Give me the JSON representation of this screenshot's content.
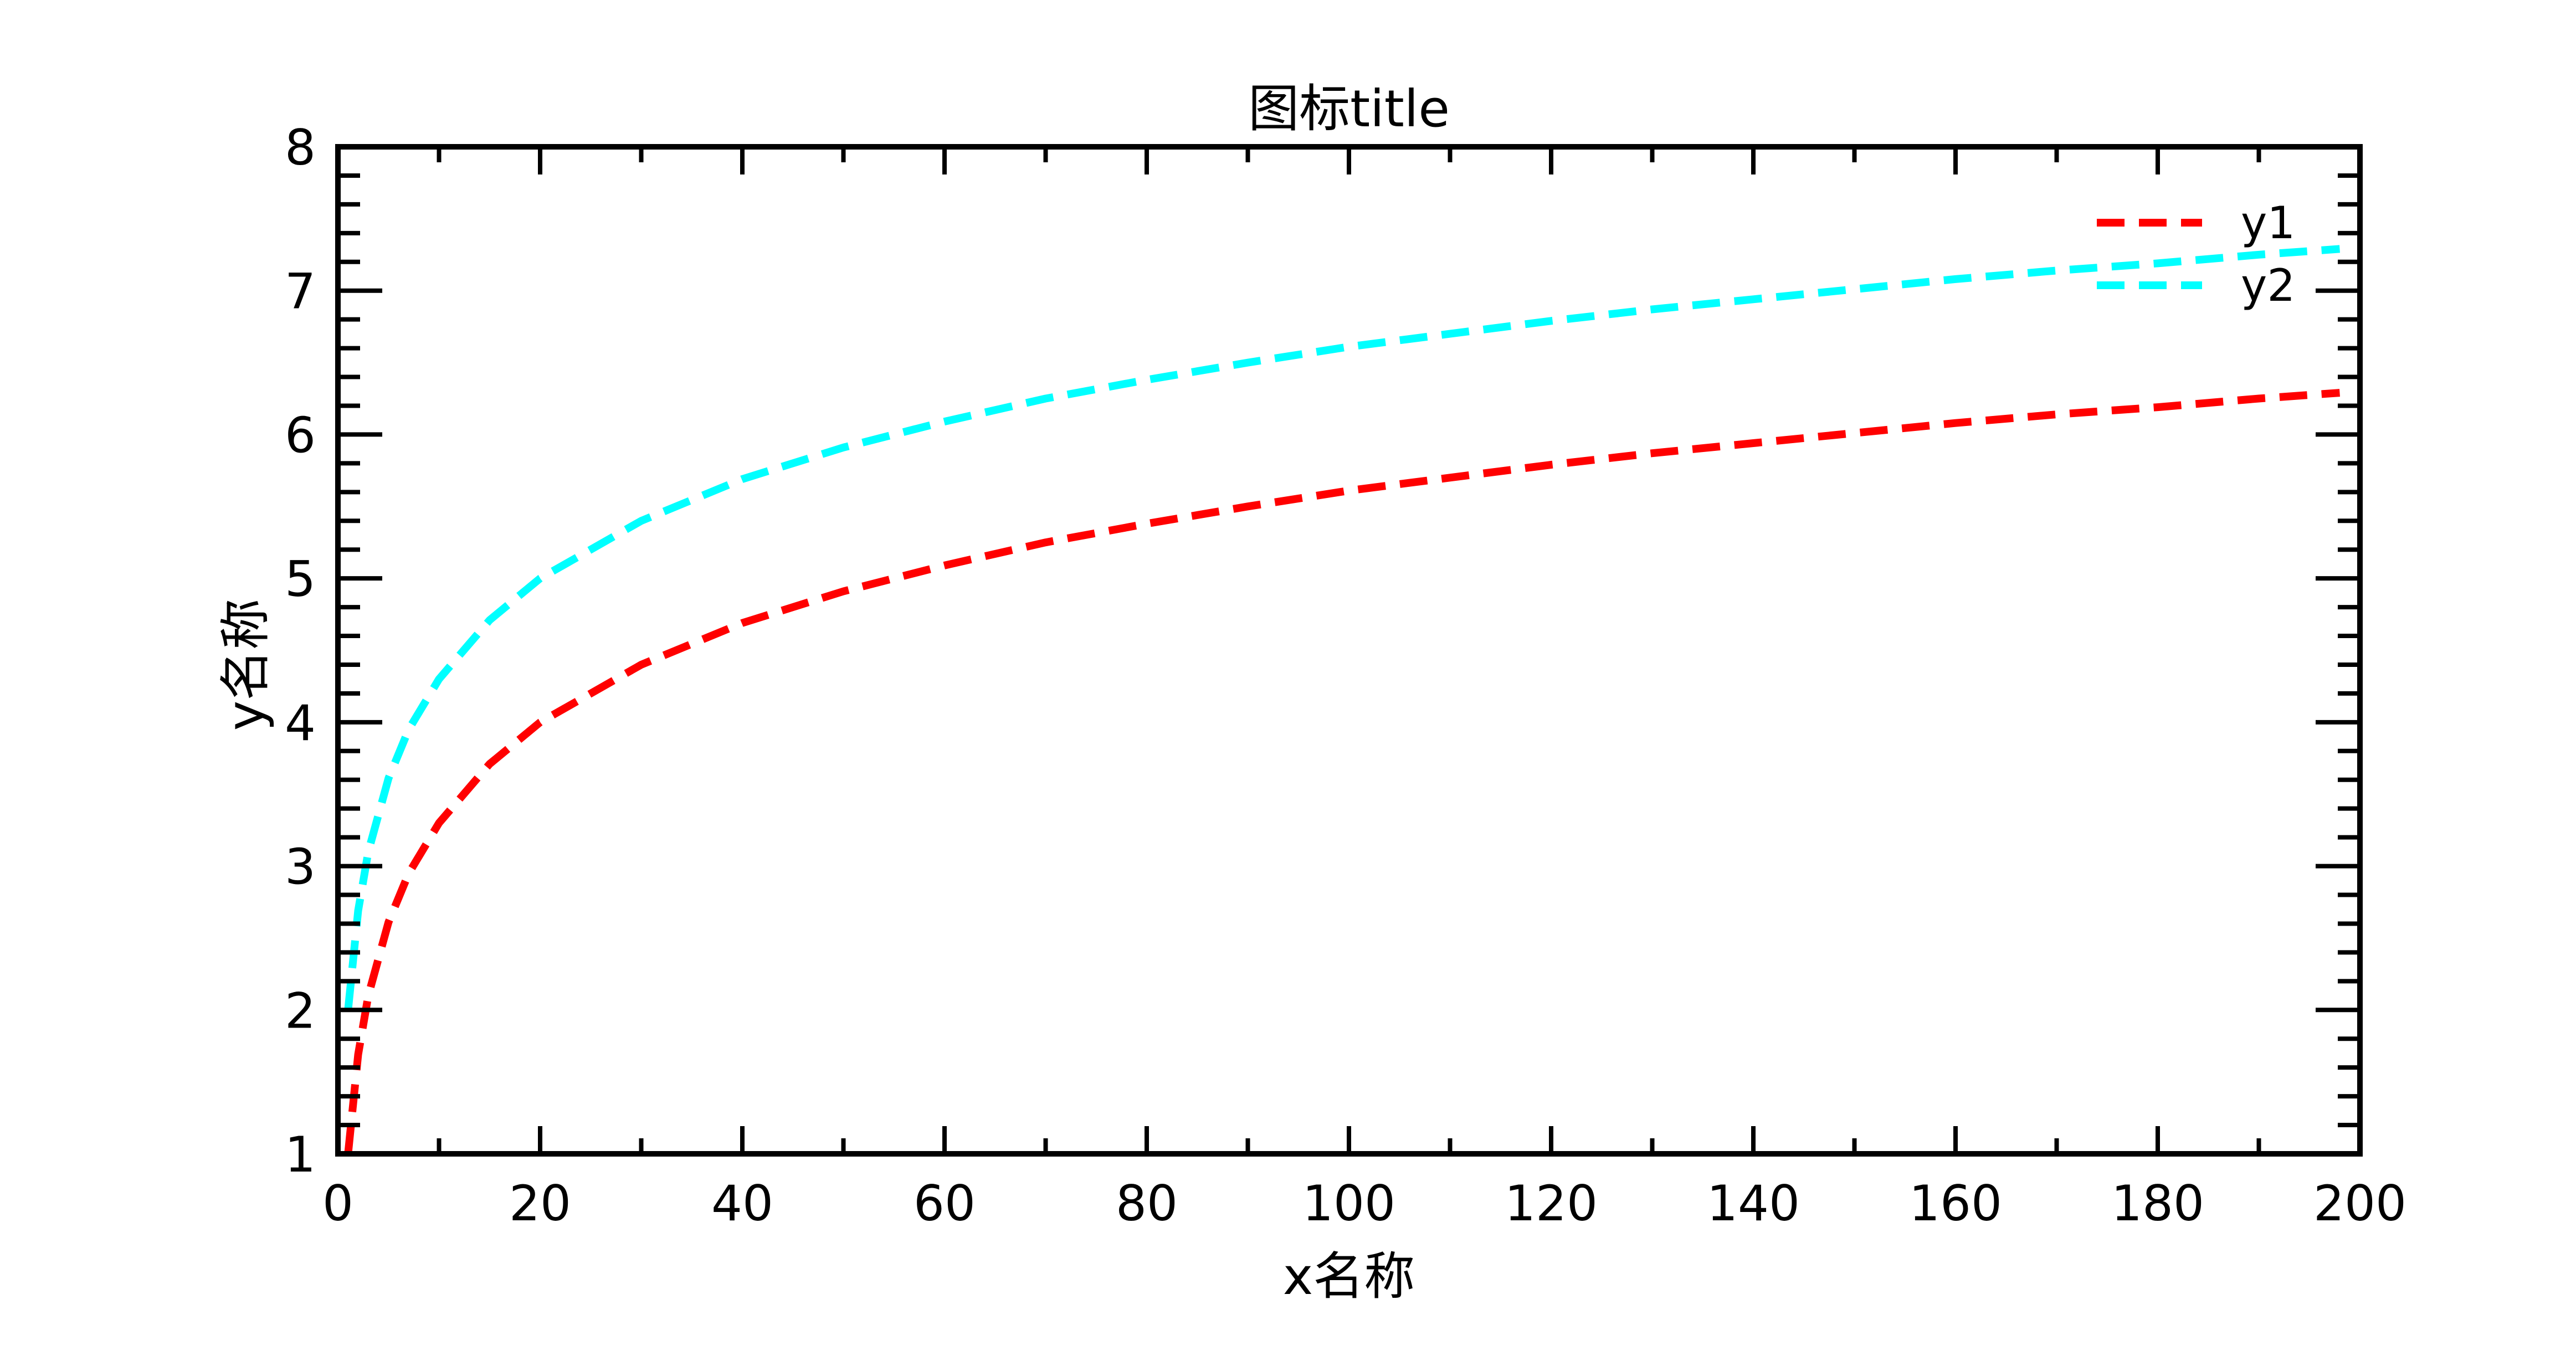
{
  "chart_data": {
    "type": "line",
    "title": "图标title",
    "xlabel": "x名称",
    "ylabel": "y名称",
    "xlim": [
      0,
      200
    ],
    "ylim": [
      1,
      8
    ],
    "xticks": [
      0,
      20,
      40,
      60,
      80,
      100,
      120,
      140,
      160,
      180,
      200
    ],
    "yticks": [
      1,
      2,
      3,
      4,
      5,
      6,
      7,
      8
    ],
    "grid": false,
    "legend_position": "top-right",
    "line_style": "dashed",
    "series": [
      {
        "name": "y1",
        "color": "#ff0000",
        "x": [
          1,
          2,
          3,
          5,
          7,
          10,
          15,
          20,
          30,
          40,
          50,
          60,
          70,
          80,
          90,
          100,
          110,
          120,
          130,
          140,
          150,
          160,
          170,
          180,
          190,
          198
        ],
        "y": [
          1.0,
          1.69,
          2.1,
          2.61,
          2.95,
          3.3,
          3.71,
          4.0,
          4.4,
          4.69,
          4.91,
          5.09,
          5.25,
          5.38,
          5.5,
          5.61,
          5.7,
          5.79,
          5.87,
          5.94,
          6.01,
          6.08,
          6.14,
          6.19,
          6.25,
          6.29
        ]
      },
      {
        "name": "y2",
        "color": "#00ffff",
        "x": [
          1,
          2,
          3,
          5,
          7,
          10,
          15,
          20,
          30,
          40,
          50,
          60,
          70,
          80,
          90,
          100,
          110,
          120,
          130,
          140,
          150,
          160,
          170,
          180,
          190,
          198
        ],
        "y": [
          2.0,
          2.69,
          3.1,
          3.61,
          3.95,
          4.3,
          4.71,
          5.0,
          5.4,
          5.69,
          5.91,
          6.09,
          6.25,
          6.38,
          6.5,
          6.61,
          6.7,
          6.79,
          6.87,
          6.94,
          7.01,
          7.08,
          7.14,
          7.19,
          7.25,
          7.29
        ]
      }
    ]
  }
}
